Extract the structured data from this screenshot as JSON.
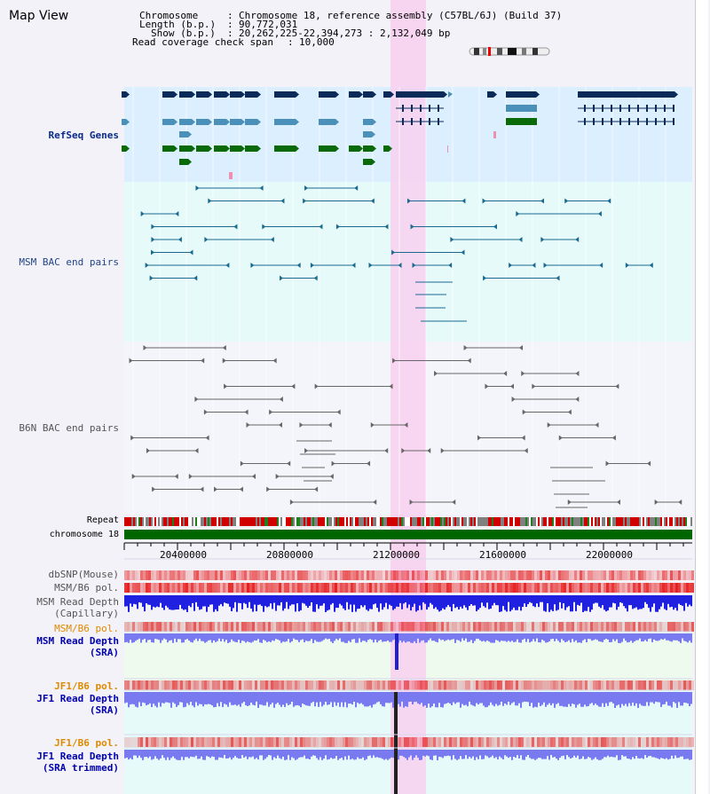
{
  "title": "Map View",
  "info": {
    "chromosome_label": "Chromosome",
    "chromosome_value": "Chromosome 18, reference assembly (C57BL/6J) (Build 37)",
    "length_label": "Length (b.p.)",
    "length_value": "90,772,031",
    "show_label": "Show (b.p.)",
    "show_value": "20,262,225-22,394,273 : 2,132,049 bp",
    "coverage_label": "Read coverage check span",
    "coverage_value": "10,000"
  },
  "tracks": {
    "refseq": "RefSeq Genes",
    "msm_bac": "MSM BAC end pairs",
    "b6n_bac": "B6N BAC end pairs",
    "repeat": "Repeat",
    "chromosome": "chromosome 18",
    "dbsnp": "dbSNP(Mouse)",
    "msm_b6_pol_1": "MSM/B6 pol.",
    "msm_depth_cap_1": "MSM Read Depth",
    "msm_depth_cap_2": "(Capillary)",
    "msm_b6_pol_2": "MSM/B6 pol.",
    "msm_depth_sra_1": "MSM Read Depth",
    "msm_depth_sra_2": "(SRA)",
    "jf1_b6_pol_1": "JF1/B6 pol.",
    "jf1_depth_sra_1": "JF1 Read Depth",
    "jf1_depth_sra_2": "(SRA)",
    "jf1_b6_pol_2": "JF1/B6 pol.",
    "jf1_depth_trim_1": "JF1 Read Depth",
    "jf1_depth_trim_2": "(SRA trimmed)"
  },
  "axis_ticks": [
    "20400000",
    "20800000",
    "21200000",
    "21600000",
    "22000000"
  ],
  "colors": {
    "refseq_bg": "#dcefff",
    "bac_bg": "#e6fafa",
    "highlight": "#f8d0f0",
    "dark_gene": "#0a2a5a",
    "mid_gene": "#4a90b8",
    "green_gene": "#0a6a0a",
    "chrom_bar": "#006600",
    "depth_blue": "#2020e0",
    "depth_light": "#7a7af0"
  }
}
